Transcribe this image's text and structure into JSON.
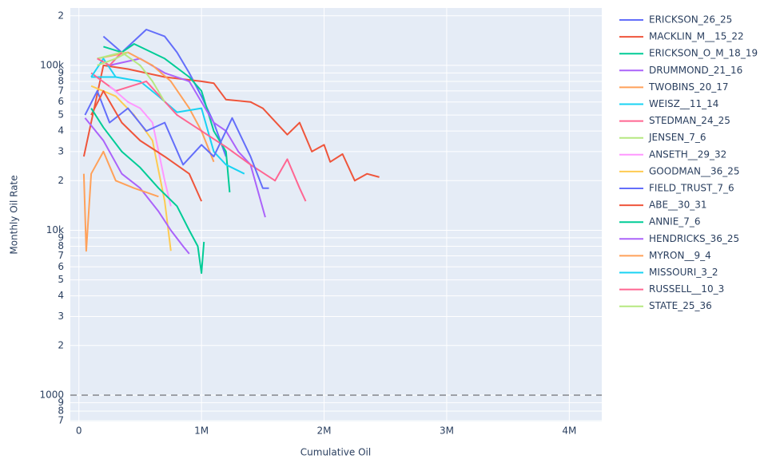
{
  "chart_data": {
    "type": "line",
    "xlabel": "Cumulative Oil",
    "ylabel": "Monthly Oil Rate",
    "ylog": true,
    "grid": true,
    "xlim": [
      -70000,
      4265000
    ],
    "ylim": [
      692,
      223000
    ],
    "xticks": [
      0,
      {
        "value": 1000000,
        "label": "1M"
      },
      {
        "value": 2000000,
        "label": "2M"
      },
      {
        "value": 3000000,
        "label": "3M"
      },
      {
        "value": 4000000,
        "label": "4M"
      }
    ],
    "yticks": [
      {
        "value": 700,
        "label": "7"
      },
      {
        "value": 800,
        "label": "8"
      },
      {
        "value": 900,
        "label": "9"
      },
      1000,
      {
        "value": 2000,
        "label": "2"
      },
      {
        "value": 3000,
        "label": "3"
      },
      {
        "value": 4000,
        "label": "4"
      },
      {
        "value": 5000,
        "label": "5"
      },
      {
        "value": 6000,
        "label": "6"
      },
      {
        "value": 7000,
        "label": "7"
      },
      {
        "value": 8000,
        "label": "8"
      },
      {
        "value": 9000,
        "label": "9"
      },
      {
        "value": 10000,
        "label": "10k"
      },
      {
        "value": 20000,
        "label": "2"
      },
      {
        "value": 30000,
        "label": "3"
      },
      {
        "value": 40000,
        "label": "4"
      },
      {
        "value": 50000,
        "label": "5"
      },
      {
        "value": 60000,
        "label": "6"
      },
      {
        "value": 70000,
        "label": "7"
      },
      {
        "value": 80000,
        "label": "8"
      },
      {
        "value": 90000,
        "label": "9"
      },
      {
        "value": 100000,
        "label": "100k"
      },
      {
        "value": 200000,
        "label": "2"
      }
    ],
    "hline": {
      "y": 1000,
      "color": "#555555",
      "dash": "dash"
    },
    "legend": "right",
    "series": [
      {
        "name": "ERICKSON_26_25",
        "color": "#636efa",
        "x": [
          200000,
          350000,
          550000,
          700000,
          800000,
          900000,
          1000000,
          1100000,
          1200000
        ],
        "values": [
          150000,
          120000,
          165000,
          150000,
          120000,
          90000,
          65000,
          45000,
          28000
        ]
      },
      {
        "name": "MACKLIN_M__15_22",
        "color": "#EF553B",
        "x": [
          40000,
          200000,
          400000,
          700000,
          1000000,
          1100000,
          1200000,
          1400000,
          1500000,
          1700000,
          1800000,
          1900000,
          2000000,
          2050000,
          2150000,
          2250000,
          2350000,
          2450000
        ],
        "values": [
          28000,
          100000,
          95000,
          85000,
          80000,
          78000,
          62000,
          60000,
          55000,
          38000,
          45000,
          30000,
          33000,
          26000,
          29000,
          20000,
          22000,
          21000
        ]
      },
      {
        "name": "ERICKSON_O_M_18_19",
        "color": "#00cc96",
        "x": [
          200000,
          350000,
          450000,
          700000,
          900000,
          1000000,
          1100000,
          1200000,
          1230000
        ],
        "values": [
          130000,
          120000,
          135000,
          110000,
          85000,
          70000,
          40000,
          30000,
          17000
        ]
      },
      {
        "name": "DRUMMOND_21_16",
        "color": "#ab63fa",
        "x": [
          250000,
          500000,
          700000,
          900000,
          1000000,
          1100000,
          1200000,
          1300000,
          1400000,
          1520000
        ],
        "values": [
          100000,
          110000,
          90000,
          80000,
          60000,
          45000,
          40000,
          30000,
          25000,
          12000
        ]
      },
      {
        "name": "TWOBINS_20_17",
        "color": "#FFA15A",
        "x": [
          150000,
          400000,
          600000,
          750000,
          900000,
          1000000,
          1100000
        ],
        "values": [
          110000,
          120000,
          100000,
          80000,
          55000,
          40000,
          26000
        ]
      },
      {
        "name": "WEISZ__11_14",
        "color": "#19d3f3",
        "x": [
          100000,
          300000,
          500000,
          650000,
          800000,
          1000000,
          1100000,
          1200000,
          1350000
        ],
        "values": [
          85000,
          85000,
          80000,
          65000,
          52000,
          55000,
          30000,
          25000,
          22000
        ]
      },
      {
        "name": "STEDMAN_24_25",
        "color": "#FF6692",
        "x": [
          100000,
          300000,
          550000,
          800000,
          1000000,
          1200000,
          1400000,
          1600000,
          1700000,
          1800000,
          1850000
        ],
        "values": [
          90000,
          70000,
          80000,
          50000,
          40000,
          32000,
          25000,
          20000,
          27000,
          18000,
          15000
        ]
      },
      {
        "name": "JENSEN_7_6",
        "color": "#B6E880",
        "x": [
          150000,
          350000,
          500000,
          600000,
          700000
        ],
        "values": [
          110000,
          120000,
          100000,
          80000,
          60000
        ]
      },
      {
        "name": "ANSETH__29_32",
        "color": "#FF97FF",
        "x": [
          250000,
          400000,
          500000,
          600000,
          700000,
          750000
        ],
        "values": [
          75000,
          60000,
          55000,
          45000,
          20000,
          14000
        ]
      },
      {
        "name": "GOODMAN__36_25",
        "color": "#FECB52",
        "x": [
          100000,
          300000,
          450000,
          600000,
          700000,
          750000
        ],
        "values": [
          75000,
          65000,
          50000,
          35000,
          15000,
          7500
        ]
      },
      {
        "name": "FIELD_TRUST_7_6",
        "color": "#636efa",
        "x": [
          50000,
          150000,
          250000,
          400000,
          550000,
          700000,
          850000,
          1000000,
          1100000,
          1250000,
          1400000,
          1500000,
          1550000
        ],
        "values": [
          50000,
          70000,
          45000,
          55000,
          40000,
          45000,
          25000,
          33000,
          28000,
          48000,
          28000,
          18000,
          18000
        ]
      },
      {
        "name": "ABE__30_31",
        "color": "#EF553B",
        "x": [
          100000,
          200000,
          350000,
          500000,
          700000,
          900000,
          1000000
        ],
        "values": [
          50000,
          70000,
          45000,
          35000,
          28000,
          22000,
          15000
        ]
      },
      {
        "name": "ANNIE_7_6",
        "color": "#00cc96",
        "x": [
          100000,
          200000,
          350000,
          500000,
          650000,
          800000,
          900000,
          970000,
          1000000,
          1020000
        ],
        "values": [
          55000,
          42000,
          30000,
          24000,
          18000,
          14000,
          10000,
          8000,
          5500,
          8500
        ]
      },
      {
        "name": "HENDRICKS_36_25",
        "color": "#ab63fa",
        "x": [
          50000,
          200000,
          350000,
          500000,
          650000,
          750000,
          850000,
          900000
        ],
        "values": [
          48000,
          35000,
          22000,
          18000,
          13000,
          10000,
          8000,
          7200
        ]
      },
      {
        "name": "MYRON__9_4",
        "color": "#FFA15A",
        "x": [
          40000,
          60000,
          100000,
          200000,
          300000,
          450000,
          550000,
          650000
        ],
        "values": [
          22000,
          7500,
          22000,
          30000,
          20000,
          18000,
          17000,
          16000
        ]
      },
      {
        "name": "MISSOURI_3_2",
        "color": "#19d3f3",
        "x": [
          100000,
          200000,
          300000
        ],
        "values": [
          85000,
          110000,
          85000
        ]
      },
      {
        "name": "RUSSELL__10_3",
        "color": "#FF6692",
        "x": [
          150000,
          250000,
          350000
        ],
        "values": [
          110000,
          100000,
          120000
        ]
      },
      {
        "name": "STATE_25_36",
        "color": "#B6E880",
        "x": [
          150000,
          300000,
          400000
        ],
        "values": [
          100000,
          110000,
          120000
        ]
      }
    ]
  }
}
